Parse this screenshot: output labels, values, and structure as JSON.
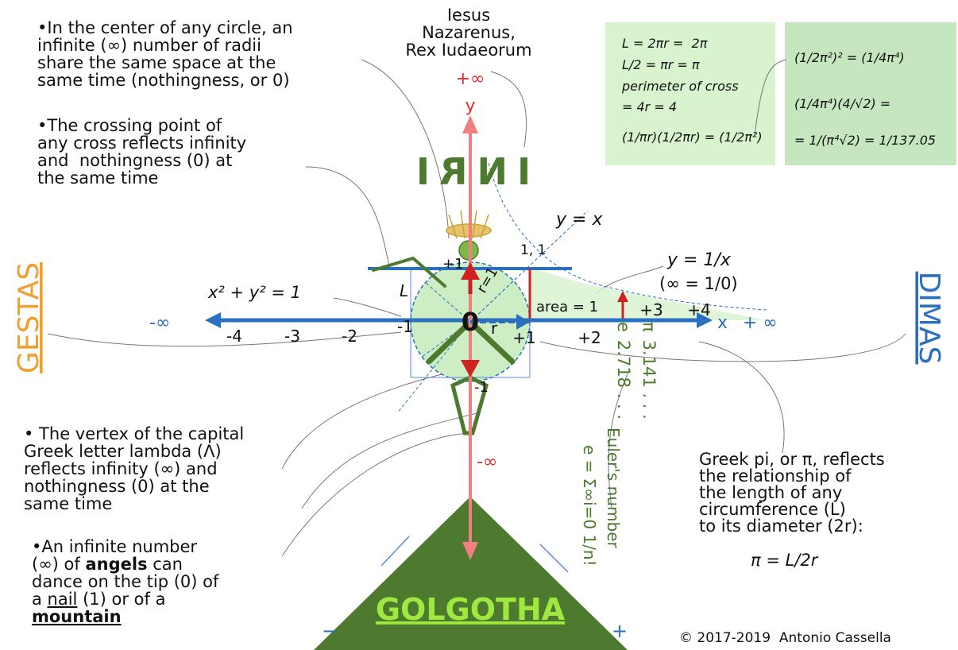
{
  "header": {
    "title_lines": [
      "Iesus",
      "Nazarenus,",
      "Rex Iudaeorum"
    ]
  },
  "notes": {
    "radii": [
      "•In the center of any circle, an",
      "infinite (∞) number of radii",
      "share the same space at the",
      "same time (nothingness, or 0)"
    ],
    "crossing": [
      "•The crossing point of",
      "any cross reflects infinity",
      "and  nothingness (0) at",
      "the same time"
    ],
    "lambda": [
      "• The vertex of the capital",
      "Greek letter lambda (Λ)",
      "reflects infinity (∞) and",
      "nothingness (0) at the",
      "same time"
    ],
    "angels": [
      [
        "•An infinite number"
      ],
      [
        "(∞) of ",
        "angels",
        " can"
      ],
      [
        "dance on the tip (0) of"
      ],
      [
        "a ",
        "nail",
        " (1) or of a"
      ],
      [
        "mountain"
      ]
    ],
    "pi": [
      "Greek pi, or π, reflects",
      "the relationship of",
      "the length of any",
      "circumference (L)",
      "to its diameter (2r):"
    ]
  },
  "formulas": {
    "box1": [
      "L = 2πr =  2π",
      "L/2 = πr = π",
      "perimeter of cross",
      "= 4r = 4",
      "(1/πr)(1/2πr) = (1/2π²)"
    ],
    "box2": [
      "(1/2π²)² = (1/4π⁴)",
      "(1/4π⁴)(4/√2) =",
      "= 1/(π⁴√2) = 1/137.05"
    ],
    "pi_def": "π = L/2r",
    "euler_label": "Euler's number",
    "euler_series": "e = Σ∞i=0 1/n!"
  },
  "graph": {
    "plus_inf_top": "+∞",
    "y_axis": "y",
    "y_eq_x": "y = x",
    "point": "1, 1",
    "y_plus1": "+1",
    "hyperbola": "y = 1/x",
    "inf_def": "(∞ = 1/0)",
    "circle_eq": "x² + y² = 1",
    "circumference": "L",
    "radius_eq": "r=1",
    "area": "area = 1",
    "x_axis": "x",
    "plus_inf_right": "+ ∞",
    "minus_inf_left": "-∞",
    "x_ticks_neg": [
      "-4",
      "-3",
      "-2",
      "-1"
    ],
    "x_ticks_pos": [
      "+1",
      "+2",
      "+3",
      "+4"
    ],
    "origin": "0",
    "radius": "r",
    "y_minus1": "-1",
    "minus_inf_bottom": "-∞",
    "e": "e",
    "e_value": "2.718 . . .",
    "pi": "π",
    "pi_value": "3.141 . . ."
  },
  "names": {
    "left": "GESTAS",
    "right": "DIMAS",
    "inri": "INRI",
    "mountain": "GOLGOTHA"
  },
  "mountain_signs": [
    "−",
    "+"
  ],
  "copyright": "© 2017-2019  Antonio Cassella"
}
